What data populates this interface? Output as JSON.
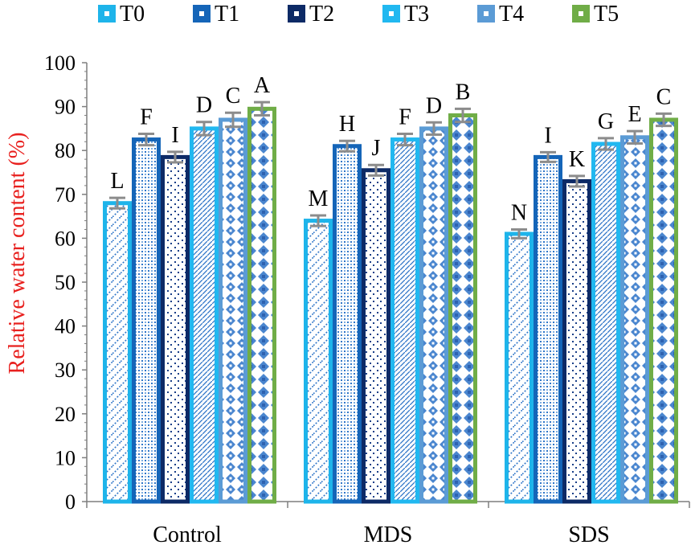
{
  "chart_data": {
    "type": "bar",
    "ylabel": "Relative water content (%)",
    "ylim": [
      0,
      100
    ],
    "yticks": [
      0,
      10,
      20,
      30,
      40,
      50,
      60,
      70,
      80,
      90,
      100
    ],
    "categories": [
      "Control",
      "MDS",
      "SDS"
    ],
    "series": [
      {
        "name": "T0",
        "color": "#1EB4EA",
        "values": [
          68,
          64,
          61
        ],
        "errors": [
          1.2,
          1.2,
          1.0
        ],
        "labels": [
          "L",
          "M",
          "N"
        ]
      },
      {
        "name": "T1",
        "color": "#1565B8",
        "values": [
          82.5,
          81,
          78.5
        ],
        "errors": [
          1.3,
          1.2,
          1.1
        ],
        "labels": [
          "F",
          "H",
          "I"
        ]
      },
      {
        "name": "T2",
        "color": "#0D2A66",
        "values": [
          78.5,
          75.5,
          73
        ],
        "errors": [
          1.2,
          1.2,
          1.2
        ],
        "labels": [
          "I",
          "J",
          "K"
        ]
      },
      {
        "name": "T3",
        "color": "#21B8F0",
        "values": [
          85,
          82.5,
          81.5
        ],
        "errors": [
          1.5,
          1.3,
          1.3
        ],
        "labels": [
          "D",
          "F",
          "G"
        ]
      },
      {
        "name": "T4",
        "color": "#5B9BD5",
        "values": [
          87,
          85,
          83
        ],
        "errors": [
          1.6,
          1.4,
          1.4
        ],
        "labels": [
          "C",
          "D",
          "E"
        ]
      },
      {
        "name": "T5",
        "color": "#70AD47",
        "values": [
          89.5,
          88,
          87
        ],
        "errors": [
          1.5,
          1.5,
          1.4
        ],
        "labels": [
          "A",
          "B",
          "C"
        ]
      }
    ],
    "legend_position": "top",
    "ylabel_color": "#E8201E"
  }
}
